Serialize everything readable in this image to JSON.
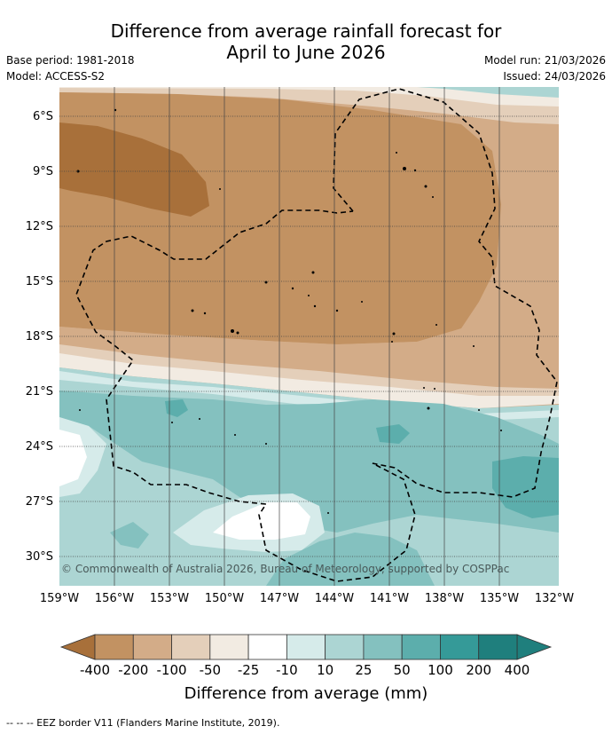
{
  "title_line1": "Difference from average rainfall forecast for",
  "title_line2": "April to June 2026",
  "base_period": "Base period: 1981-2018",
  "model": "Model: ACCESS-S2",
  "model_run": "Model run: 21/03/2026",
  "issued": "Issued: 24/03/2026",
  "copyright": "© Commonwealth of Australia 2026, Bureau of Meteorology, supported by COSPPac",
  "lat_labels": [
    "6°S",
    "9°S",
    "12°S",
    "15°S",
    "18°S",
    "21°S",
    "24°S",
    "27°S",
    "30°S"
  ],
  "lon_labels": [
    "159°W",
    "156°W",
    "153°W",
    "150°W",
    "147°W",
    "144°W",
    "141°W",
    "138°W",
    "135°W",
    "132°W"
  ],
  "colorbar": {
    "labels": [
      "-400",
      "-200",
      "-100",
      "-50",
      "-25",
      "-10",
      "10",
      "25",
      "50",
      "100",
      "200",
      "400"
    ],
    "colors": [
      "#a8703a",
      "#c29262",
      "#d3ac88",
      "#e4cfba",
      "#f2ebe2",
      "#ffffff",
      "#d6ebea",
      "#acd5d3",
      "#84c1bf",
      "#5caeac",
      "#359a98",
      "#1f7f7d"
    ],
    "title": "Difference from average (mm)"
  },
  "footer": "--  --  -- EEZ border V11 (Flanders Marine Institute, 2019)."
}
